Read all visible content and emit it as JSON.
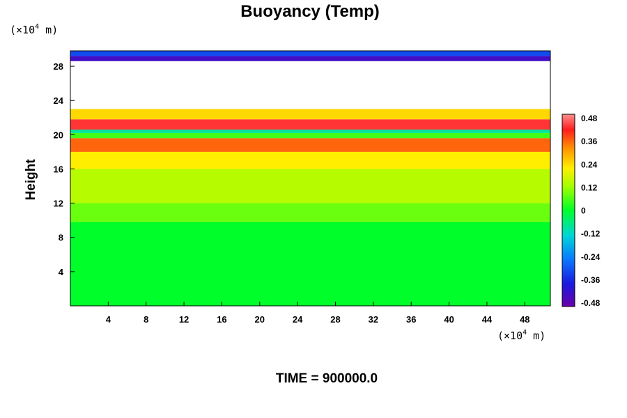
{
  "chart_data": {
    "type": "heatmap",
    "title": "Buoyancy (Temp)",
    "ylabel": "Height",
    "xlabel": "",
    "x_unit": {
      "prefix": "(×10",
      "exp": "4",
      "suffix": " m)"
    },
    "y_unit": {
      "prefix": "(×10",
      "exp": "4",
      "suffix": " m)"
    },
    "xlim": [
      0,
      50.7
    ],
    "ylim": [
      0,
      29.8
    ],
    "x_ticks": [
      4,
      8,
      12,
      16,
      20,
      24,
      28,
      32,
      36,
      40,
      44,
      48
    ],
    "y_ticks": [
      4,
      8,
      12,
      16,
      20,
      24,
      28
    ],
    "colorbar": {
      "ticks": [
        "0.48",
        "0.36",
        "0.24",
        "0.12",
        "0",
        "-0.12",
        "-0.24",
        "-0.36",
        "-0.48"
      ],
      "range": [
        -0.48,
        0.48
      ]
    },
    "layers": [
      {
        "height": [
          0,
          9.8
        ],
        "value": 0.0
      },
      {
        "height": [
          9.8,
          12
        ],
        "value": 0.08
      },
      {
        "height": [
          12,
          16
        ],
        "value": 0.14
      },
      {
        "height": [
          16,
          18
        ],
        "value": 0.2
      },
      {
        "height": [
          18,
          19.6
        ],
        "value": 0.32
      },
      {
        "height": [
          19.6,
          20.2
        ],
        "value": 0.05
      },
      {
        "height": [
          20.2,
          20.6
        ],
        "value": -0.08
      },
      {
        "height": [
          20.6,
          21.8
        ],
        "value": 0.4
      },
      {
        "height": [
          21.8,
          23
        ],
        "value": 0.22
      },
      {
        "height": [
          28.6,
          29.2
        ],
        "value": -0.42
      },
      {
        "height": [
          29.2,
          29.8
        ],
        "value": -0.3
      }
    ],
    "grid": false
  },
  "footer": {
    "label": "TIME = 900000.0"
  }
}
